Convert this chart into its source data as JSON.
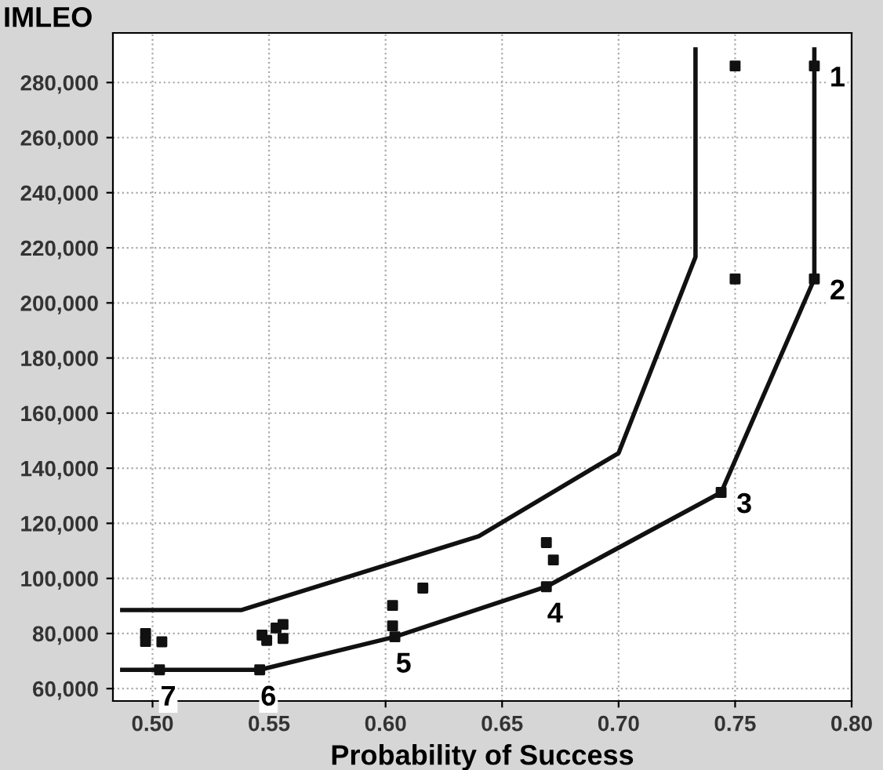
{
  "chart_data": {
    "type": "line",
    "ylabel": "IMLEO",
    "xlabel": "Probability of Success",
    "xlim": [
      0.483,
      0.8
    ],
    "ylim": [
      55500,
      298000
    ],
    "xticks": [
      {
        "value": 0.5,
        "label": "0.50"
      },
      {
        "value": 0.55,
        "label": "0.55"
      },
      {
        "value": 0.6,
        "label": "0.60"
      },
      {
        "value": 0.65,
        "label": "0.65"
      },
      {
        "value": 0.7,
        "label": "0.70"
      },
      {
        "value": 0.75,
        "label": "0.75"
      },
      {
        "value": 0.8,
        "label": "0.80"
      }
    ],
    "yticks": [
      {
        "value": 60000,
        "label": "60,000"
      },
      {
        "value": 80000,
        "label": "80,000"
      },
      {
        "value": 100000,
        "label": "100,000"
      },
      {
        "value": 120000,
        "label": "120,000"
      },
      {
        "value": 140000,
        "label": "140,000"
      },
      {
        "value": 160000,
        "label": "160,000"
      },
      {
        "value": 180000,
        "label": "180,000"
      },
      {
        "value": 200000,
        "label": "200,000"
      },
      {
        "value": 220000,
        "label": "220,000"
      },
      {
        "value": 240000,
        "label": "240,000"
      },
      {
        "value": 260000,
        "label": "260,000"
      },
      {
        "value": 280000,
        "label": "280,000"
      }
    ],
    "grid": true,
    "series": [
      {
        "color": "#111111",
        "x": [
          0.487,
          0.538,
          0.64,
          0.7,
          0.733,
          0.733
        ],
        "values": [
          88500,
          88500,
          115300,
          145500,
          216700,
          292000
        ]
      },
      {
        "color": "#111111",
        "x": [
          0.487,
          0.503,
          0.546,
          0.604,
          0.669,
          0.744,
          0.784,
          0.784
        ],
        "values": [
          66800,
          66800,
          66800,
          78800,
          97000,
          131200,
          208700,
          292000
        ]
      },
      {
        "type": "scatter",
        "color": "#111111",
        "marker": "square",
        "x": [
          0.784,
          0.784,
          0.744,
          0.669,
          0.604,
          0.546,
          0.503
        ],
        "values": [
          286000,
          208700,
          131200,
          97000,
          78800,
          66800,
          66800
        ]
      },
      {
        "type": "scatter",
        "color": "#111111",
        "marker": "square",
        "x": [
          0.75,
          0.75,
          0.669,
          0.672,
          0.603,
          0.603,
          0.616,
          0.547,
          0.549,
          0.553,
          0.556,
          0.556,
          0.497,
          0.497,
          0.504
        ],
        "values": [
          286000,
          208700,
          113000,
          106700,
          90200,
          82800,
          96500,
          79400,
          77500,
          82000,
          83300,
          78200,
          80000,
          77100,
          77000
        ]
      }
    ],
    "annotations": [
      {
        "text": "1",
        "x": 0.784,
        "y": 286000
      },
      {
        "text": "2",
        "x": 0.784,
        "y": 208700
      },
      {
        "text": "3",
        "x": 0.744,
        "y": 131200
      },
      {
        "text": "4",
        "x": 0.669,
        "y": 97000
      },
      {
        "text": "5",
        "x": 0.604,
        "y": 78800
      },
      {
        "text": "6",
        "x": 0.546,
        "y": 66800
      },
      {
        "text": "7",
        "x": 0.503,
        "y": 66800
      }
    ]
  }
}
